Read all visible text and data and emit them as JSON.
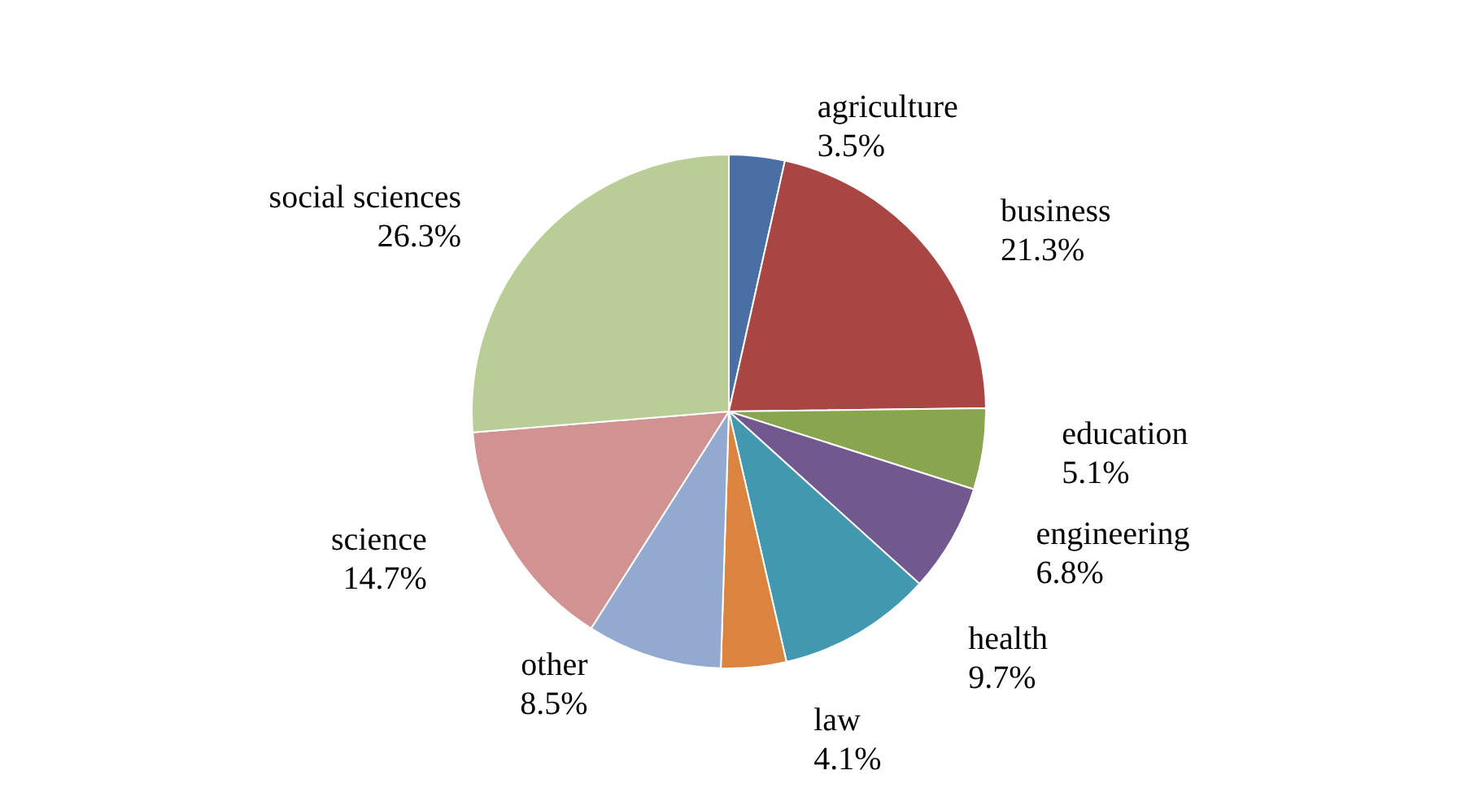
{
  "chart_data": {
    "type": "pie",
    "categories": [
      "agriculture",
      "business",
      "education",
      "engineering",
      "health",
      "law",
      "other",
      "science",
      "social sciences"
    ],
    "values": [
      3.5,
      21.3,
      5.1,
      6.8,
      9.7,
      4.1,
      8.5,
      14.7,
      26.3
    ],
    "value_labels": [
      "3.5%",
      "21.3%",
      "5.1%",
      "6.8%",
      "9.7%",
      "4.1%",
      "8.5%",
      "14.7%",
      "26.3%"
    ],
    "colors": [
      "#4a6fa5",
      "#a94543",
      "#89a54e",
      "#71588f",
      "#4198af",
      "#db843d",
      "#93a9cf",
      "#d19392",
      "#b9cd96"
    ],
    "legend": false
  }
}
